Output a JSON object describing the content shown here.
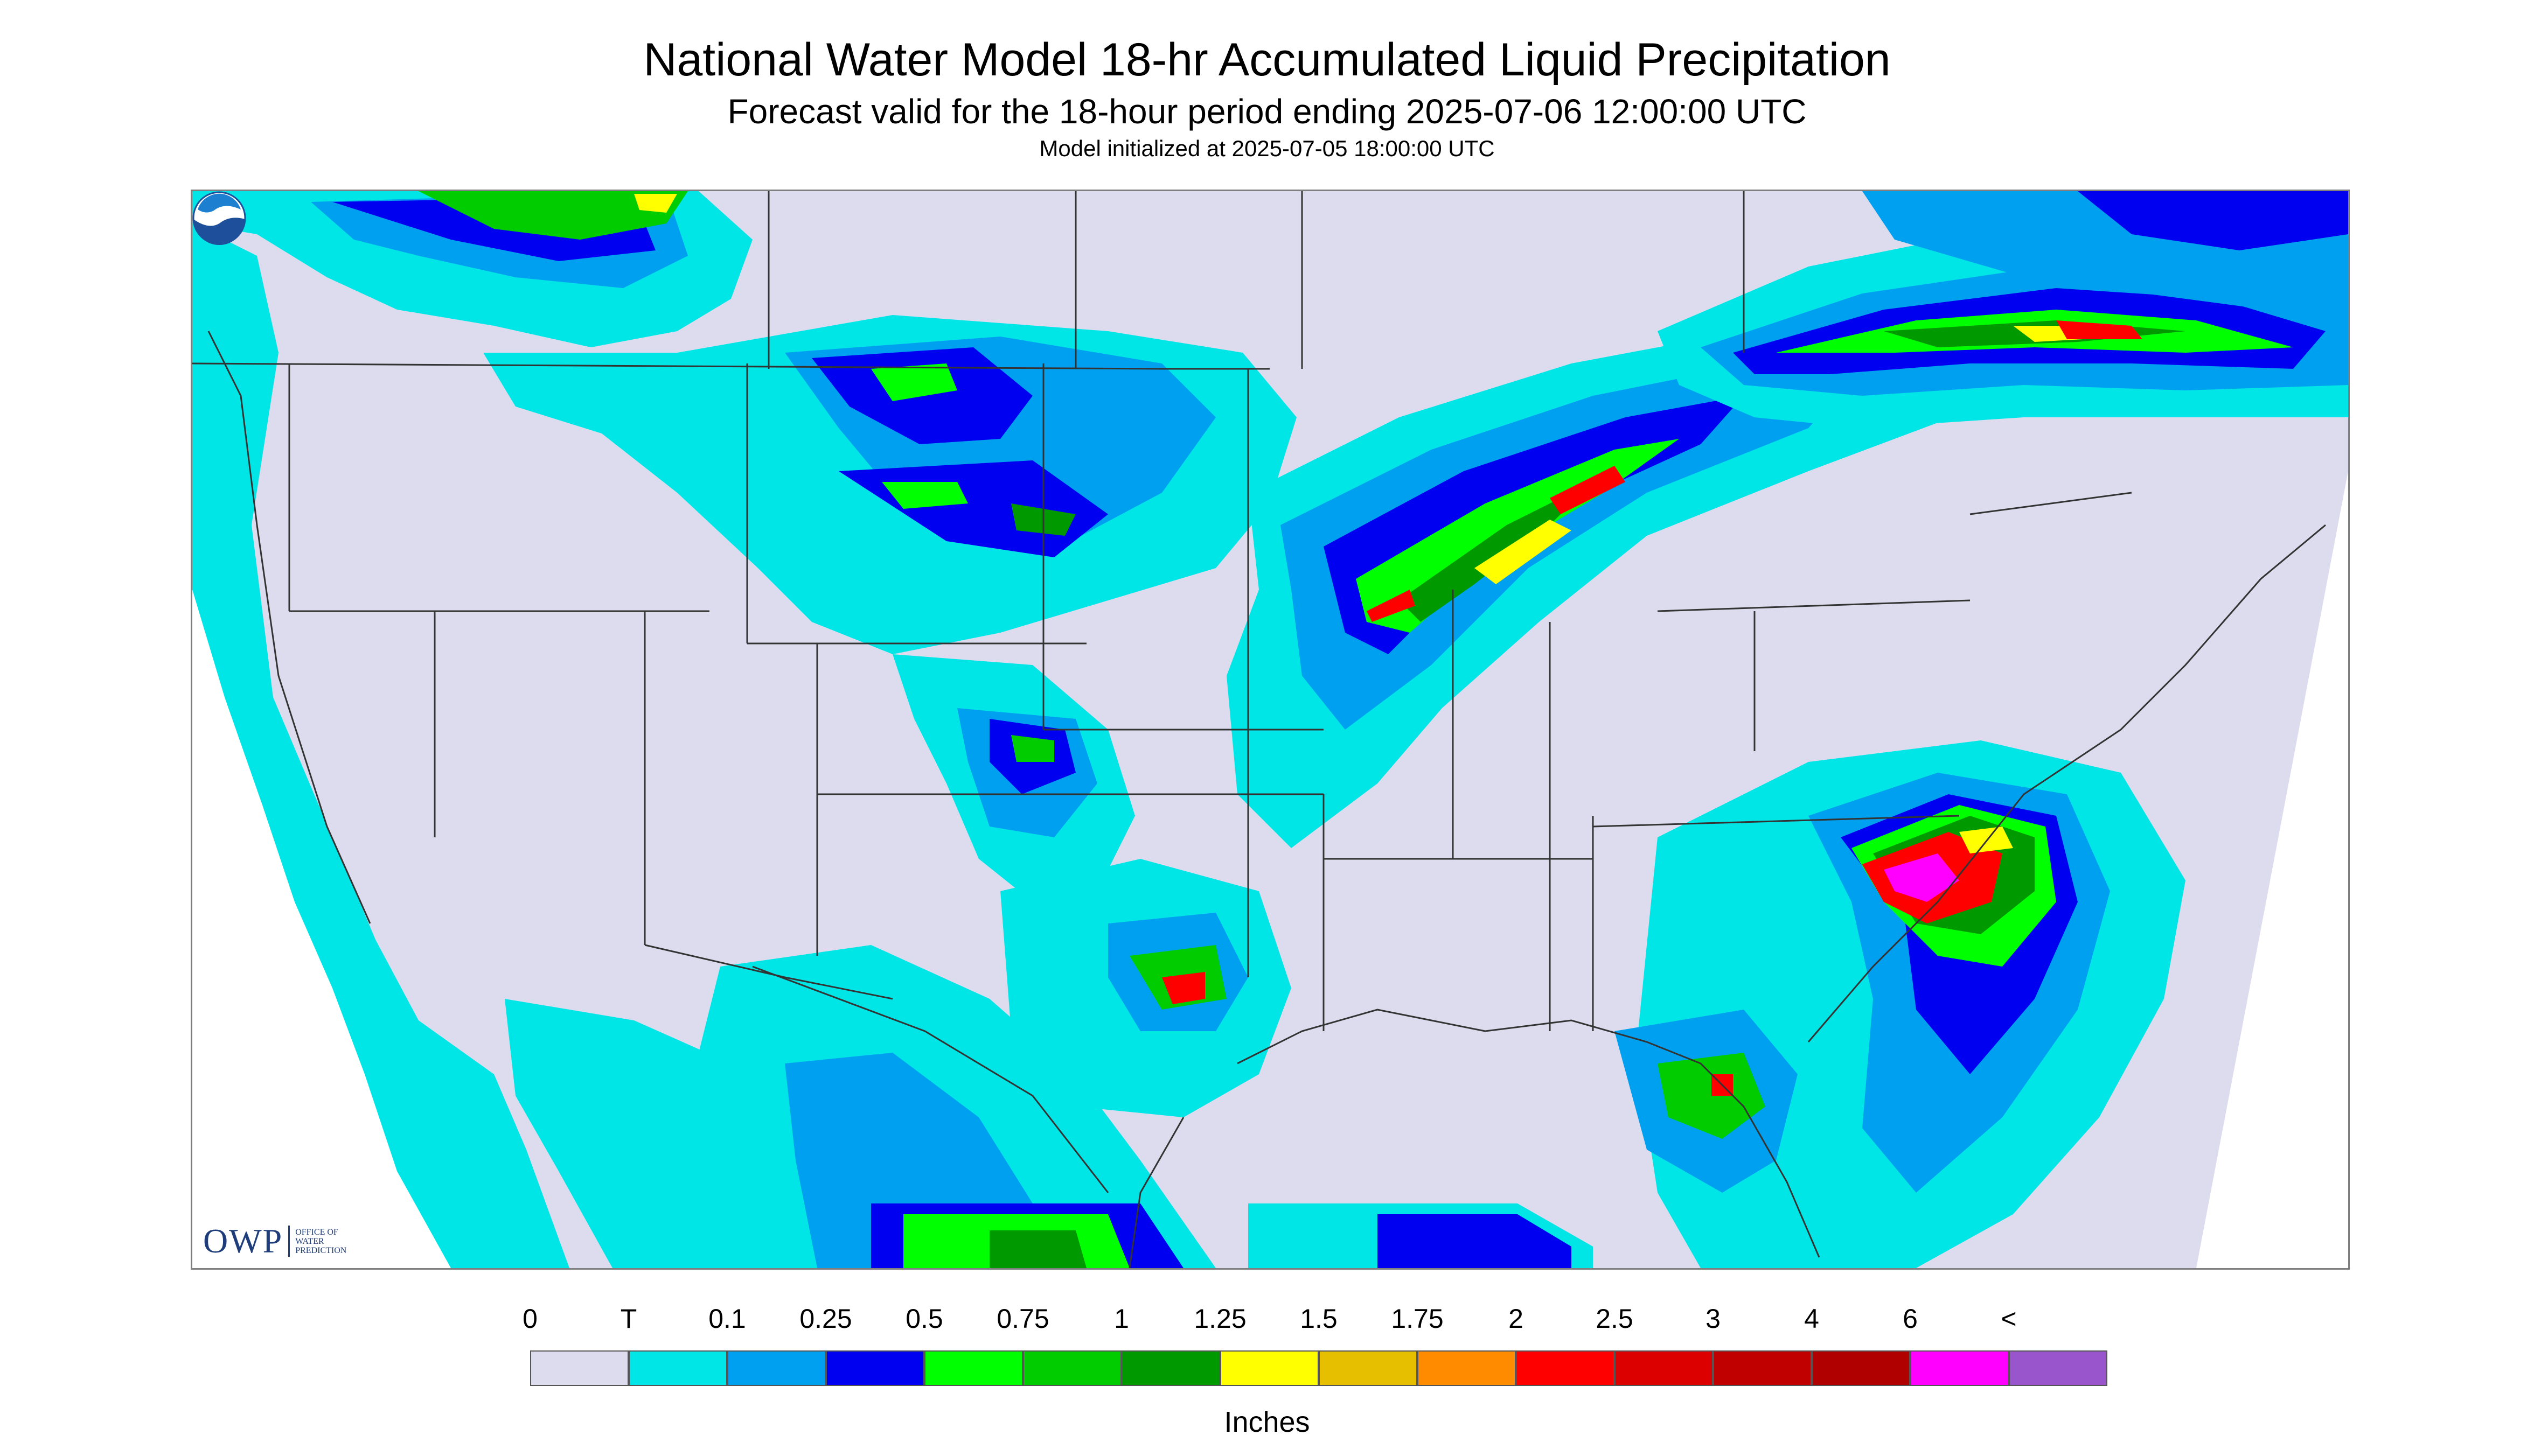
{
  "title": "National Water Model 18-hr Accumulated Liquid Precipitation",
  "subtitle": "Forecast valid for the 18-hour period ending 2025-07-06 12:00:00 UTC",
  "init_line": "Model initialized at 2025-07-05 18:00:00 UTC",
  "logos": {
    "owp_mark": "OWP",
    "owp_text": [
      "OFFICE OF",
      "WATER",
      "PREDICTION"
    ]
  },
  "legend": {
    "labels": [
      "0",
      "T",
      "0.1",
      "0.25",
      "0.5",
      "0.75",
      "1",
      "1.25",
      "1.5",
      "1.75",
      "2",
      "2.5",
      "3",
      "4",
      "6",
      "<"
    ],
    "colors": [
      "#dcdcee",
      "#00e6e6",
      "#00a0f0",
      "#0000f0",
      "#00ff00",
      "#00cc00",
      "#009900",
      "#ffff00",
      "#e6c000",
      "#ff8c00",
      "#ff0000",
      "#dc0000",
      "#c00000",
      "#b00000",
      "#ff00ff",
      "#9955cc"
    ],
    "units": "Inches"
  },
  "map_colors": {
    "background": "#dcdcee",
    "no_data": "#ffffff",
    "trace": "#00e6e6",
    "light": "#00a0f0",
    "moderate": "#0000f0",
    "heavy_green": "#00ff00",
    "heavy_dk": "#009900",
    "very_heavy": "#ff0000",
    "extreme": "#ff00ff",
    "yellow": "#ffff00",
    "borders": "#333333"
  }
}
